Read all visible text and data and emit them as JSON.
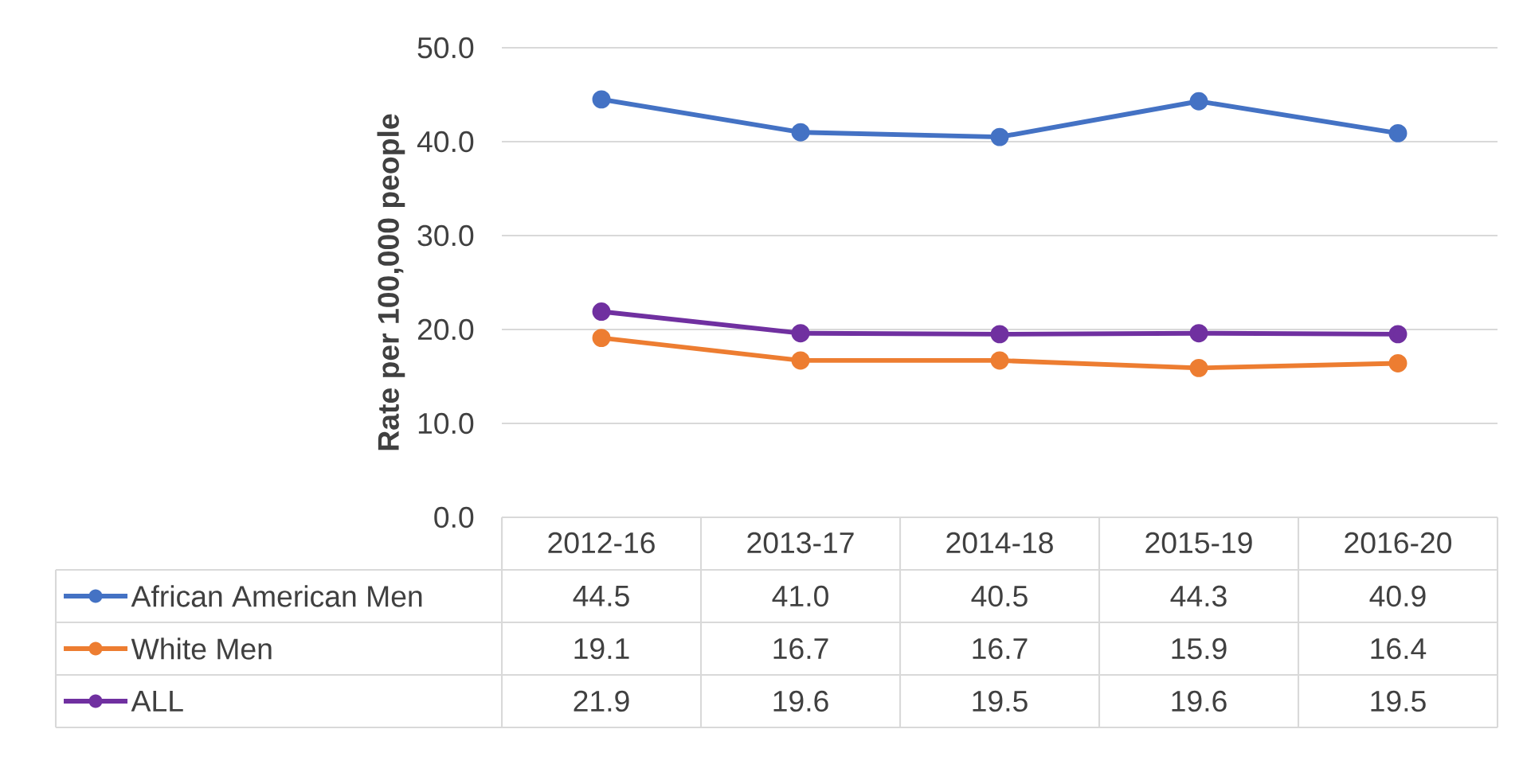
{
  "chart_data": {
    "type": "line",
    "ylabel": "Rate per 100,000 people",
    "categories": [
      "2012-16",
      "2013-17",
      "2014-18",
      "2015-19",
      "2016-20"
    ],
    "series": [
      {
        "name": "African American Men",
        "color": "#4472c4",
        "values": [
          44.5,
          41.0,
          40.5,
          44.3,
          40.9
        ],
        "value_labels": [
          "44.5",
          "41.0",
          "40.5",
          "44.3",
          "40.9"
        ]
      },
      {
        "name": "White Men",
        "color": "#ed7d31",
        "values": [
          19.1,
          16.7,
          16.7,
          15.9,
          16.4
        ],
        "value_labels": [
          "19.1",
          "16.7",
          "16.7",
          "15.9",
          "16.4"
        ]
      },
      {
        "name": "ALL",
        "color": "#7030a0",
        "values": [
          21.9,
          19.6,
          19.5,
          19.6,
          19.5
        ],
        "value_labels": [
          "21.9",
          "19.6",
          "19.5",
          "19.6",
          "19.5"
        ]
      }
    ],
    "ylim": [
      0,
      50
    ],
    "yticks": [
      {
        "value": 0,
        "label": "0.0"
      },
      {
        "value": 10,
        "label": "10.0"
      },
      {
        "value": 20,
        "label": "20.0"
      },
      {
        "value": 30,
        "label": "30.0"
      },
      {
        "value": 40,
        "label": "40.0"
      },
      {
        "value": 50,
        "label": "50.0"
      }
    ],
    "grid": "y",
    "marker": "circle",
    "line_style": "solid",
    "legend": "bottom left"
  }
}
